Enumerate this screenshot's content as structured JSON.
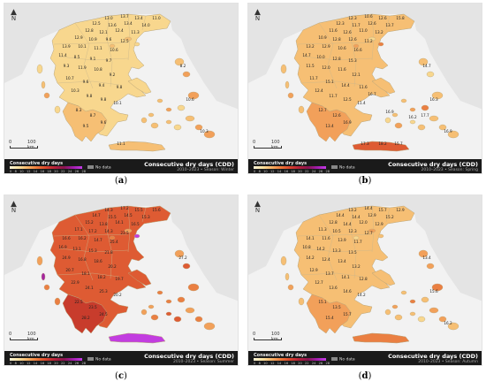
{
  "scale": {
    "zero": "0",
    "dist": "100 km"
  },
  "north": {
    "label": "N"
  },
  "legend": {
    "title": "Consecutive dry days",
    "ticks": [
      "0",
      "8",
      "10",
      "12",
      "14",
      "16",
      "18",
      "20",
      "22",
      "24",
      "26",
      "28"
    ],
    "no_data": "No data",
    "map_title": "Consecutive dry days (CDD)"
  },
  "panels": [
    {
      "letter": "a",
      "subtitle": "2010–2023 • Season: Winter",
      "labels": [
        "13.0",
        "13.7",
        "13.4",
        "11.0",
        "12.5",
        "13.6",
        "13.4",
        "14.0",
        "12.8",
        "12.1",
        "12.4",
        "11.3",
        "12.9",
        "10.9",
        "9.6",
        "12.5",
        "13.9",
        "10.1",
        "11.1",
        "10.6",
        "11.4",
        "8.5",
        "9.1",
        "9.7",
        "9.3",
        "11.9",
        "10.8",
        "9.2",
        "10.7",
        "9.6",
        "9.4",
        "9.8",
        "10.3",
        "9.8",
        "9.8",
        "10.1",
        "8.3",
        "8.7",
        "9.5",
        "9.6",
        "8.2",
        "10.6",
        "10.3",
        "11.1"
      ]
    },
    {
      "letter": "b",
      "subtitle": "2010–2023 • Season: Spring",
      "labels": [
        "12.3",
        "10.6",
        "12.6",
        "15.8",
        "12.3",
        "11.7",
        "12.6",
        "13.7",
        "11.6",
        "12.6",
        "11.0",
        "13.2",
        "10.9",
        "12.8",
        "12.6",
        "11.2",
        "13.2",
        "12.9",
        "10.6",
        "16.6",
        "14.7",
        "10.0",
        "12.8",
        "15.3",
        "11.5",
        "12.0",
        "11.6",
        "12.1",
        "11.7",
        "15.1",
        "14.4",
        "11.6",
        "12.4",
        "11.7",
        "12.5",
        "11.4",
        "12.7",
        "12.6",
        "13.4",
        "16.9",
        "14.7",
        "16.3",
        "16.9",
        "17.3",
        "18.2",
        "15.7",
        "16.7",
        "17.7",
        "16.2",
        "16.9"
      ]
    },
    {
      "letter": "c",
      "subtitle": "2010–2023 • Season: Summer",
      "labels": [
        "14.3",
        "17.2",
        "15.5",
        "15.6",
        "14.7",
        "15.5",
        "14.5",
        "15.3",
        "15.2",
        "13.8",
        "14.1",
        "16.5",
        "17.1",
        "17.2",
        "14.3",
        "23.5",
        "16.6",
        "16.2",
        "14.7",
        "25.4",
        "16.9",
        "13.1",
        "15.3",
        "21.8",
        "24.9",
        "16.8",
        "18.6",
        "20.2",
        "20.7",
        "18.1",
        "18.2",
        "19.7",
        "22.9",
        "24.1",
        "25.3",
        "20.2",
        "22.5",
        "23.5",
        "28.2",
        "24.5",
        "27.2"
      ]
    },
    {
      "letter": "d",
      "subtitle": "2010–2023 • Season: Autumn",
      "labels": [
        "13.2",
        "14.4",
        "15.7",
        "12.9",
        "14.4",
        "14.4",
        "12.9",
        "15.2",
        "12.8",
        "14.4",
        "12.0",
        "12.9",
        "11.3",
        "10.5",
        "12.3",
        "12.7",
        "14.1",
        "11.6",
        "13.9",
        "11.7",
        "10.8",
        "14.2",
        "13.3",
        "13.5",
        "14.2",
        "12.4",
        "13.4",
        "13.2",
        "12.9",
        "13.7",
        "14.1",
        "12.8",
        "12.7",
        "13.6",
        "14.6",
        "14.2",
        "15.1",
        "13.5",
        "15.4",
        "15.7",
        "13.4",
        "15.6",
        "16.2"
      ]
    }
  ]
}
